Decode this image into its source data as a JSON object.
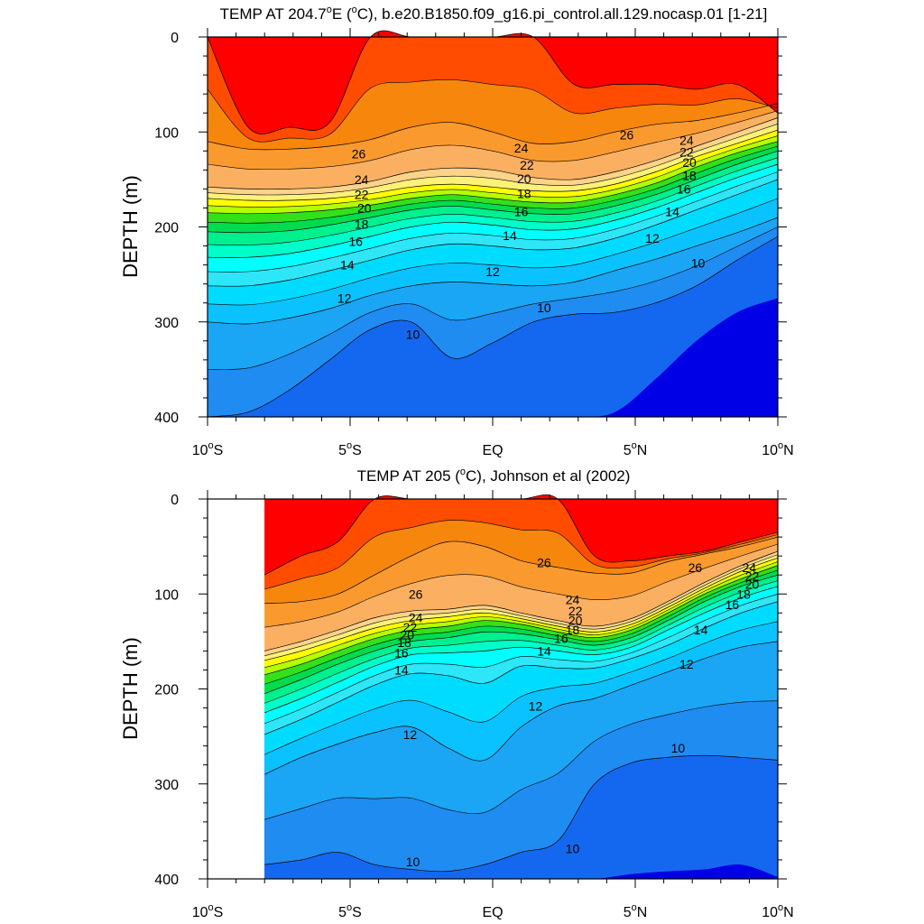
{
  "chart_data": [
    {
      "type": "heatmap",
      "subtype": "filled-contour-section",
      "title_main": "TEMP AT 204.7",
      "title_deg": "o",
      "title_rest": "E (",
      "title_unit_deg": "o",
      "title_tail": "C), b.e20.B1850.f09_g16.pi_control.all.129.nocasp.01 [1-21]",
      "ylabel": "DEPTH (m)",
      "ylim": [
        0,
        400
      ],
      "y_inverted": true,
      "yticks": [
        "0",
        "100",
        "200",
        "300",
        "400"
      ],
      "xlim": [
        -10,
        10
      ],
      "xticks": [
        {
          "main": "10",
          "deg": "o",
          "suffix": "S"
        },
        {
          "main": "5",
          "deg": "o",
          "suffix": "S"
        },
        {
          "main": "EQ",
          "deg": "",
          "suffix": ""
        },
        {
          "main": "5",
          "deg": "o",
          "suffix": "N"
        },
        {
          "main": "10",
          "deg": "o",
          "suffix": "N"
        }
      ],
      "data_xlim": [
        -10,
        10
      ],
      "contour_interval": 1,
      "isotherms": [
        {
          "t": 28,
          "depth": [
            null,
            95,
            95,
            90,
            0,
            0,
            0,
            0,
            0,
            50,
            50,
            50,
            55,
            50,
            80
          ]
        },
        {
          "t": 26,
          "depth": [
            110,
            118,
            118,
            115,
            108,
            95,
            90,
            100,
            112,
            110,
            100,
            92,
            88,
            80,
            70
          ]
        },
        {
          "t": 24,
          "depth": [
            158,
            160,
            160,
            158,
            152,
            142,
            138,
            140,
            148,
            150,
            142,
            130,
            115,
            100,
            85
          ]
        },
        {
          "t": 22,
          "depth": [
            170,
            172,
            172,
            170,
            165,
            158,
            155,
            158,
            162,
            162,
            155,
            142,
            126,
            112,
            98
          ]
        },
        {
          "t": 20,
          "depth": [
            185,
            186,
            185,
            182,
            177,
            170,
            166,
            170,
            174,
            174,
            166,
            154,
            137,
            122,
            110
          ]
        },
        {
          "t": 18,
          "depth": [
            205,
            206,
            204,
            198,
            190,
            182,
            178,
            182,
            186,
            186,
            178,
            166,
            150,
            134,
            120
          ]
        },
        {
          "t": 16,
          "depth": [
            232,
            232,
            228,
            220,
            210,
            200,
            195,
            198,
            203,
            202,
            193,
            180,
            164,
            148,
            134
          ]
        },
        {
          "t": 14,
          "depth": [
            262,
            262,
            256,
            246,
            235,
            224,
            218,
            220,
            224,
            222,
            212,
            198,
            182,
            166,
            150
          ]
        },
        {
          "t": 12,
          "depth": [
            300,
            302,
            296,
            286,
            272,
            262,
            258,
            260,
            262,
            258,
            246,
            234,
            220,
            206,
            190
          ]
        },
        {
          "t": 10,
          "depth": [
            400,
            395,
            372,
            340,
            308,
            300,
            338,
            322,
            300,
            292,
            290,
            280,
            262,
            235,
            210
          ]
        },
        {
          "t": 9,
          "depth": [
            400,
            400,
            400,
            400,
            400,
            400,
            400,
            400,
            400,
            400,
            395,
            360,
            320,
            290,
            275
          ]
        }
      ],
      "contour_labels": [
        {
          "text": "26",
          "x": -4.7,
          "y": 123
        },
        {
          "text": "24",
          "x": -4.6,
          "y": 150
        },
        {
          "text": "22",
          "x": -4.6,
          "y": 166
        },
        {
          "text": "20",
          "x": -4.5,
          "y": 180
        },
        {
          "text": "18",
          "x": -4.6,
          "y": 197
        },
        {
          "text": "16",
          "x": -4.8,
          "y": 215
        },
        {
          "text": "14",
          "x": -5.1,
          "y": 240
        },
        {
          "text": "12",
          "x": -5.2,
          "y": 275
        },
        {
          "text": "10",
          "x": -2.8,
          "y": 313
        },
        {
          "text": "24",
          "x": 1.0,
          "y": 117
        },
        {
          "text": "22",
          "x": 1.2,
          "y": 135
        },
        {
          "text": "20",
          "x": 1.1,
          "y": 149
        },
        {
          "text": "18",
          "x": 1.1,
          "y": 165
        },
        {
          "text": "16",
          "x": 1.0,
          "y": 184
        },
        {
          "text": "14",
          "x": 0.6,
          "y": 209
        },
        {
          "text": "12",
          "x": 0.0,
          "y": 247
        },
        {
          "text": "10",
          "x": 1.8,
          "y": 285
        },
        {
          "text": "26",
          "x": 4.7,
          "y": 103
        },
        {
          "text": "24",
          "x": 6.8,
          "y": 109
        },
        {
          "text": "22",
          "x": 6.8,
          "y": 121
        },
        {
          "text": "20",
          "x": 6.9,
          "y": 132
        },
        {
          "text": "18",
          "x": 6.9,
          "y": 146
        },
        {
          "text": "16",
          "x": 6.7,
          "y": 160
        },
        {
          "text": "14",
          "x": 6.3,
          "y": 184
        },
        {
          "text": "12",
          "x": 5.6,
          "y": 212
        },
        {
          "text": "10",
          "x": 7.2,
          "y": 238
        }
      ]
    },
    {
      "type": "heatmap",
      "subtype": "filled-contour-section",
      "title_main": "TEMP AT 205 (",
      "title_unit_deg": "o",
      "title_tail": "C), Johnson et al (2002)",
      "ylabel": "DEPTH (m)",
      "ylim": [
        0,
        400
      ],
      "y_inverted": true,
      "yticks": [
        "0",
        "100",
        "200",
        "300",
        "400"
      ],
      "xlim": [
        -10,
        10
      ],
      "xticks": [
        {
          "main": "10",
          "deg": "o",
          "suffix": "S"
        },
        {
          "main": "5",
          "deg": "o",
          "suffix": "S"
        },
        {
          "main": "EQ",
          "deg": "",
          "suffix": ""
        },
        {
          "main": "5",
          "deg": "o",
          "suffix": "N"
        },
        {
          "main": "10",
          "deg": "o",
          "suffix": "N"
        }
      ],
      "data_xlim": [
        -8,
        10
      ],
      "contour_interval": 1,
      "isotherms": [
        {
          "t": 28,
          "depth": [
            80,
            60,
            45,
            0,
            0,
            0,
            0,
            0,
            0,
            60,
            65,
            60,
            55,
            45,
            35
          ]
        },
        {
          "t": 26,
          "depth": [
            110,
            108,
            100,
            80,
            60,
            45,
            50,
            65,
            72,
            78,
            78,
            66,
            58,
            50,
            40
          ]
        },
        {
          "t": 24,
          "depth": [
            160,
            150,
            138,
            125,
            118,
            116,
            112,
            120,
            128,
            134,
            126,
            108,
            88,
            70,
            55
          ]
        },
        {
          "t": 22,
          "depth": [
            170,
            160,
            148,
            136,
            128,
            124,
            120,
            126,
            134,
            140,
            132,
            114,
            94,
            76,
            62
          ]
        },
        {
          "t": 20,
          "depth": [
            185,
            174,
            160,
            147,
            138,
            134,
            128,
            132,
            140,
            146,
            138,
            120,
            100,
            84,
            70
          ]
        },
        {
          "t": 18,
          "depth": [
            205,
            190,
            174,
            160,
            150,
            146,
            140,
            142,
            148,
            154,
            146,
            128,
            108,
            92,
            80
          ]
        },
        {
          "t": 16,
          "depth": [
            225,
            210,
            193,
            176,
            164,
            162,
            160,
            156,
            160,
            164,
            156,
            138,
            120,
            104,
            92
          ]
        },
        {
          "t": 14,
          "depth": [
            248,
            232,
            214,
            196,
            184,
            186,
            194,
            176,
            178,
            178,
            168,
            154,
            136,
            120,
            108
          ]
        },
        {
          "t": 12,
          "depth": [
            290,
            272,
            258,
            246,
            240,
            262,
            275,
            240,
            218,
            210,
            196,
            182,
            168,
            156,
            150
          ]
        },
        {
          "t": 10,
          "depth": [
            385,
            380,
            372,
            385,
            390,
            392,
            385,
            372,
            360,
            300,
            278,
            272,
            270,
            272,
            275
          ]
        },
        {
          "t": 9,
          "depth": [
            400,
            400,
            400,
            400,
            400,
            400,
            400,
            400,
            400,
            400,
            395,
            392,
            390,
            385,
            398
          ]
        }
      ],
      "contour_labels": [
        {
          "text": "26",
          "x": -2.7,
          "y": 100
        },
        {
          "text": "24",
          "x": -2.7,
          "y": 125
        },
        {
          "text": "22",
          "x": -2.9,
          "y": 135
        },
        {
          "text": "20",
          "x": -3.0,
          "y": 143
        },
        {
          "text": "18",
          "x": -3.1,
          "y": 151
        },
        {
          "text": "16",
          "x": -3.2,
          "y": 162
        },
        {
          "text": "14",
          "x": -3.2,
          "y": 180
        },
        {
          "text": "12",
          "x": -2.9,
          "y": 248
        },
        {
          "text": "10",
          "x": -2.8,
          "y": 382
        },
        {
          "text": "26",
          "x": 1.8,
          "y": 67
        },
        {
          "text": "24",
          "x": 2.8,
          "y": 106
        },
        {
          "text": "22",
          "x": 2.9,
          "y": 118
        },
        {
          "text": "20",
          "x": 2.9,
          "y": 128
        },
        {
          "text": "18",
          "x": 2.8,
          "y": 138
        },
        {
          "text": "16",
          "x": 2.4,
          "y": 147
        },
        {
          "text": "14",
          "x": 1.8,
          "y": 160
        },
        {
          "text": "12",
          "x": 1.5,
          "y": 218
        },
        {
          "text": "10",
          "x": 2.8,
          "y": 368
        },
        {
          "text": "26",
          "x": 7.1,
          "y": 72
        },
        {
          "text": "24",
          "x": 9.0,
          "y": 72
        },
        {
          "text": "22",
          "x": 9.1,
          "y": 81
        },
        {
          "text": "20",
          "x": 9.1,
          "y": 90
        },
        {
          "text": "18",
          "x": 8.8,
          "y": 100
        },
        {
          "text": "16",
          "x": 8.4,
          "y": 111
        },
        {
          "text": "14",
          "x": 7.3,
          "y": 138
        },
        {
          "text": "12",
          "x": 6.8,
          "y": 174
        },
        {
          "text": "10",
          "x": 6.5,
          "y": 262
        }
      ]
    }
  ],
  "colors": {
    "29": "#ff0000",
    "28": "#ff4c00",
    "27": "#f7860d",
    "26": "#fa9a2e",
    "25": "#fbb061",
    "24": "#fdd38a",
    "23": "#fef178",
    "22": "#ffff00",
    "21": "#b4ff00",
    "20": "#33e01a",
    "19": "#00dc4e",
    "18": "#00f08e",
    "17": "#00ffc8",
    "16": "#00ffff",
    "15": "#2de6f7",
    "14": "#00dcff",
    "13": "#0ac2ff",
    "12": "#1aa6f5",
    "11": "#1f8cf2",
    "10": "#1468f0",
    "9": "#0044ee",
    "8": "#0000e6"
  }
}
